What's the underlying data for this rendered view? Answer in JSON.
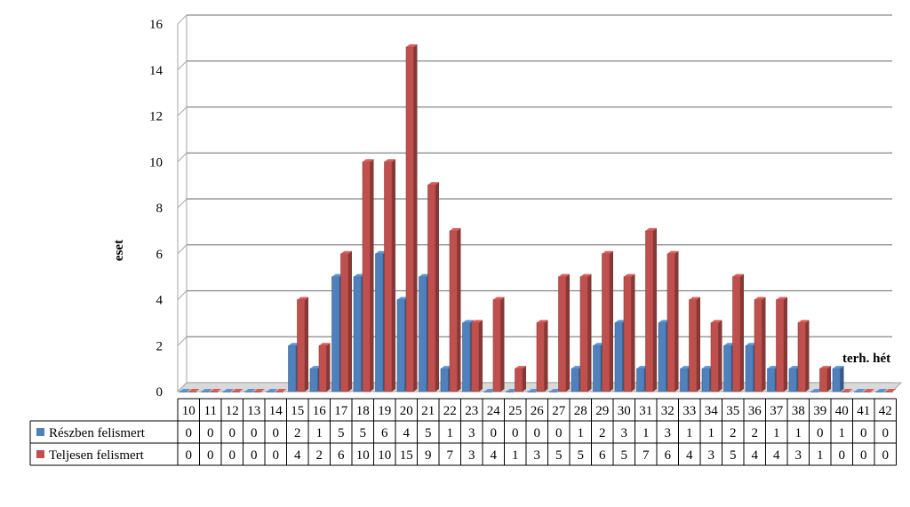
{
  "chart_data": {
    "type": "bar",
    "title": "",
    "xlabel": "terh. hét",
    "ylabel": "eset",
    "ylim": [
      0,
      16
    ],
    "yticks": [
      0,
      2,
      4,
      6,
      8,
      10,
      12,
      14,
      16
    ],
    "grid": true,
    "legend": "data table rows (left)",
    "categories": [
      "10",
      "11",
      "12",
      "13",
      "14",
      "15",
      "16",
      "17",
      "18",
      "19",
      "20",
      "21",
      "22",
      "23",
      "24",
      "25",
      "26",
      "27",
      "28",
      "29",
      "30",
      "31",
      "32",
      "33",
      "34",
      "35",
      "36",
      "37",
      "38",
      "39",
      "40",
      "41",
      "42"
    ],
    "series": [
      {
        "name": "Részben felismert",
        "color": "#4f81bd",
        "values": [
          0,
          0,
          0,
          0,
          0,
          2,
          1,
          5,
          5,
          6,
          4,
          5,
          1,
          3,
          0,
          0,
          0,
          0,
          1,
          2,
          3,
          1,
          3,
          1,
          1,
          2,
          2,
          1,
          1,
          0,
          1,
          0,
          0
        ]
      },
      {
        "name": "Teljesen felismert",
        "color": "#c0504d",
        "values": [
          0,
          0,
          0,
          0,
          0,
          4,
          2,
          6,
          10,
          10,
          15,
          9,
          7,
          3,
          4,
          1,
          3,
          5,
          5,
          6,
          5,
          7,
          6,
          4,
          3,
          5,
          4,
          4,
          3,
          1,
          0,
          0,
          0
        ]
      }
    ]
  }
}
